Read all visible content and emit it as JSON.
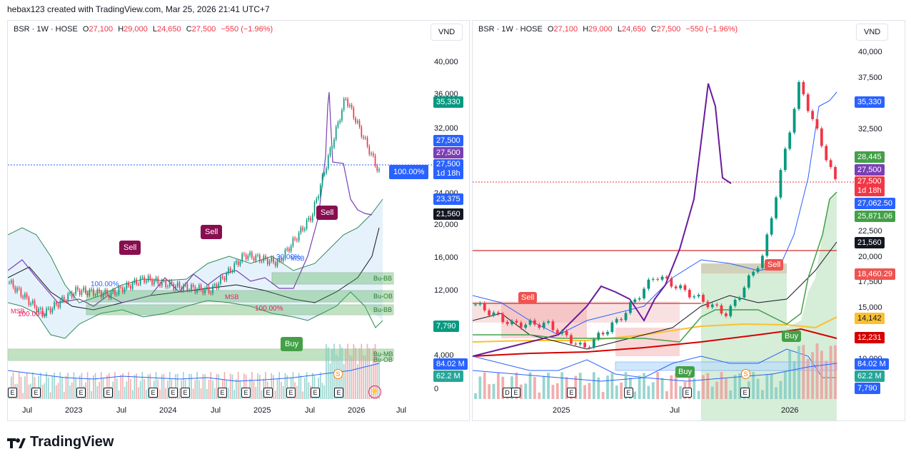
{
  "header": {
    "attribution": "hebax123 created with TradingView.com, Mar 25, 2026 21:41 UTC+7"
  },
  "footer": {
    "brand": "TradingView"
  },
  "left_chart": {
    "legend": {
      "symbol": "BSR · 1W · HOSE",
      "o_label": "O",
      "o": "27,100",
      "h_label": "H",
      "h": "29,000",
      "l_label": "L",
      "l": "24,650",
      "c_label": "C",
      "c": "27,500",
      "change": "−550 (−1.96%)"
    },
    "unit": "VND",
    "y_ticks": [
      "40,000",
      "36,000",
      "32,000",
      "28,000",
      "24,000",
      "20,000",
      "16,000",
      "12,000",
      "8,000",
      "4,000",
      "0"
    ],
    "x_ticks": [
      "Jul",
      "2023",
      "Jul",
      "2024",
      "Jul",
      "2025",
      "Jul",
      "2026",
      "Jul"
    ],
    "tags": {
      "t1": "35,330",
      "t2": "27,500",
      "t3": "27,500",
      "t4": "27,500",
      "t4b": "1d 18h",
      "t5": "23,375",
      "t6": "21,560",
      "t7": "7,790",
      "t8": "84.02 M",
      "t9": "62.2 M",
      "pct": "100.00%"
    },
    "signals": {
      "sell1": "Sell",
      "sell2": "Sell",
      "sell3": "Sell",
      "buy1": "Buy"
    },
    "zone_labels": {
      "z1": "Bu-BB",
      "z2": "Bu-OB",
      "z3": "Bu-BB",
      "z4": "Bu-MB",
      "z5": "Bu-OB",
      "z6": "Bu-MB",
      "z7": "Bu-OB"
    },
    "annotations": {
      "a1": "100.00%",
      "a2": "100.00%",
      "a3": "100.00%",
      "a4": "30.00%",
      "a5": "MSB",
      "a6": "MSB",
      "a7": "MSB"
    },
    "earnings": [
      "E",
      "E",
      "E",
      "E",
      "E",
      "E",
      "E",
      "E",
      "E",
      "E",
      "E",
      "E",
      "E",
      "E",
      "S"
    ]
  },
  "right_chart": {
    "legend": {
      "symbol": "BSR · 1W · HOSE",
      "o_label": "O",
      "o": "27,100",
      "h_label": "H",
      "h": "29,000",
      "l_label": "L",
      "l": "24,650",
      "c_label": "C",
      "c": "27,500",
      "change": "−550 (−1.96%)"
    },
    "unit": "VND",
    "y_ticks": [
      "40,000",
      "37,500",
      "32,500",
      "22,500",
      "20,000",
      "17,500",
      "15,000",
      "10,000"
    ],
    "x_ticks": [
      "2025",
      "Jul",
      "2026"
    ],
    "tags": {
      "t1": "35,330",
      "t2": "28,445",
      "t3": "27,500",
      "t4": "27,500",
      "t4b": "1d 18h",
      "t5": "27,062.50",
      "t6": "25,871.06",
      "t7": "21,560",
      "t8": "18,460.29",
      "t9": "14,142",
      "t10": "12,231",
      "t11": "84.02 M",
      "t12": "62.2 M",
      "t13": "7,790"
    },
    "signals": {
      "sell1": "Sell",
      "sell2": "Sell",
      "buy1": "Buy",
      "buy2": "Buy"
    },
    "earnings": [
      "D",
      "E",
      "E",
      "E",
      "E",
      "E",
      "S"
    ]
  },
  "chart_data": [
    {
      "type": "candlestick",
      "title": "BSR · 1W · HOSE",
      "unit": "VND",
      "x": [
        "2022-07",
        "2023-01",
        "2023-07",
        "2024-01",
        "2024-07",
        "2025-01",
        "2025-07",
        "2025-09",
        "2025-11",
        "2026-01",
        "2026-02",
        "2026-03"
      ],
      "close_approx": [
        13500,
        9500,
        12500,
        12000,
        14000,
        13000,
        12500,
        17000,
        16000,
        22000,
        37000,
        27500
      ],
      "ylim": [
        0,
        42000
      ],
      "last": {
        "open": 27100,
        "high": 29000,
        "low": 24650,
        "close": 27500,
        "change": -550,
        "change_pct": -1.96
      }
    },
    {
      "type": "candlestick",
      "title": "BSR · 1W · HOSE",
      "unit": "VND",
      "x": [
        "2024-09",
        "2024-12",
        "2025-01",
        "2025-04",
        "2025-07",
        "2025-08",
        "2025-10",
        "2025-12",
        "2026-01",
        "2026-02",
        "2026-03"
      ],
      "close_approx": [
        15000,
        13000,
        13000,
        10500,
        13500,
        18000,
        16000,
        14000,
        20000,
        37500,
        27500
      ],
      "ylim": [
        9000,
        41000
      ]
    }
  ]
}
